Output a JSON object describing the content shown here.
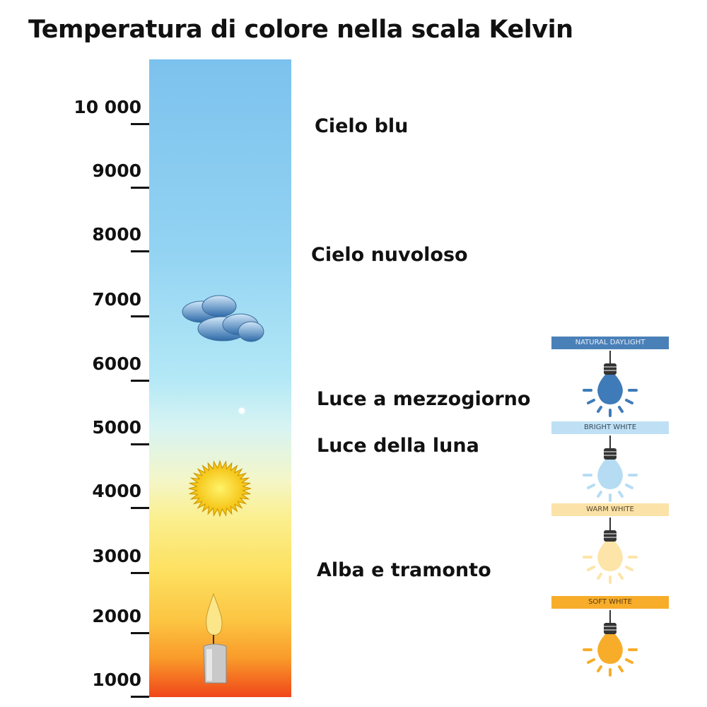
{
  "title": "Temperatura di colore nella scala Kelvin",
  "scale": {
    "ticks": [
      "10 000",
      "9000",
      "8000",
      "7000",
      "6000",
      "5000",
      "4000",
      "3000",
      "2000",
      "1000"
    ],
    "unit": "K"
  },
  "labels": [
    "Cielo blu",
    "Cielo nuvoloso",
    "Luce a mezzogiorno",
    "Luce della luna",
    "Alba e tramonto"
  ],
  "icons": [
    "cloud-icon",
    "sun-icon",
    "candle-icon"
  ],
  "bulbs": [
    {
      "label": "NATURAL DAYLIGHT",
      "banner_color": "#4a80b8",
      "text_color": "#e6eef8",
      "bulb_color": "#3f7bb8"
    },
    {
      "label": "BRIGHT WHITE",
      "banner_color": "#bfe0f4",
      "text_color": "#3a4a5a",
      "bulb_color": "#b6dcf4"
    },
    {
      "label": "WARM WHITE",
      "banner_color": "#fbe2a8",
      "text_color": "#5a4a30",
      "bulb_color": "#fde4a8"
    },
    {
      "label": "SOFT WHITE",
      "banner_color": "#f7ad2a",
      "text_color": "#5a3a10",
      "bulb_color": "#f7ad2a"
    }
  ]
}
